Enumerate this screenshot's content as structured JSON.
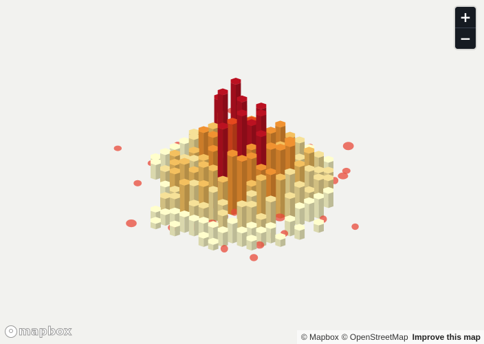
{
  "zoom": {
    "in_label": "+",
    "out_label": "−"
  },
  "logo": {
    "text": "mapbox"
  },
  "attribution": {
    "mapbox": "© Mapbox",
    "osm": "© OpenStreetMap",
    "improve": "Improve this map"
  },
  "colors": {
    "background": "#f2f2ef",
    "ramp": [
      "#f2f0c0",
      "#e8d48f",
      "#e6b55a",
      "#e28a2e",
      "#d9451c",
      "#b0101f"
    ],
    "point": "#e84a3a"
  },
  "layer": {
    "type": "hexagon-extrusion",
    "tallest_color": "#b0101f"
  }
}
